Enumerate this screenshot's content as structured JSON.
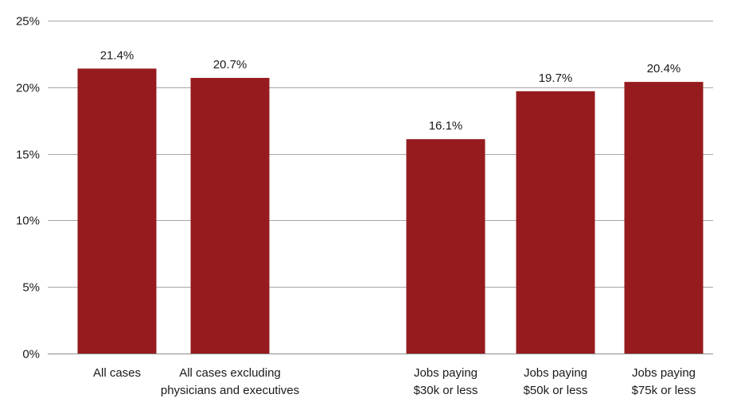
{
  "colors": {
    "bar": "#961b1e",
    "grid": "#a6a6a6",
    "text": "#1a1a1a"
  },
  "chart_data": {
    "type": "bar",
    "title": "",
    "xlabel": "",
    "ylabel": "",
    "ylim": [
      0,
      25
    ],
    "y_ticks": [
      "0%",
      "5%",
      "10%",
      "15%",
      "20%",
      "25%"
    ],
    "y_tick_values": [
      0,
      5,
      10,
      15,
      20,
      25
    ],
    "grid": true,
    "legend": "none",
    "categories": [
      [
        "All cases"
      ],
      [
        "All cases excluding",
        "physicians and executives"
      ],
      [
        "Jobs paying",
        "$30k or less"
      ],
      [
        "Jobs paying",
        "$50k or less"
      ],
      [
        "Jobs paying",
        "$75k or less"
      ]
    ],
    "values": [
      21.4,
      20.7,
      16.1,
      19.7,
      20.4
    ],
    "value_labels": [
      "21.4%",
      "20.7%",
      "16.1%",
      "19.7%",
      "20.4%"
    ]
  }
}
